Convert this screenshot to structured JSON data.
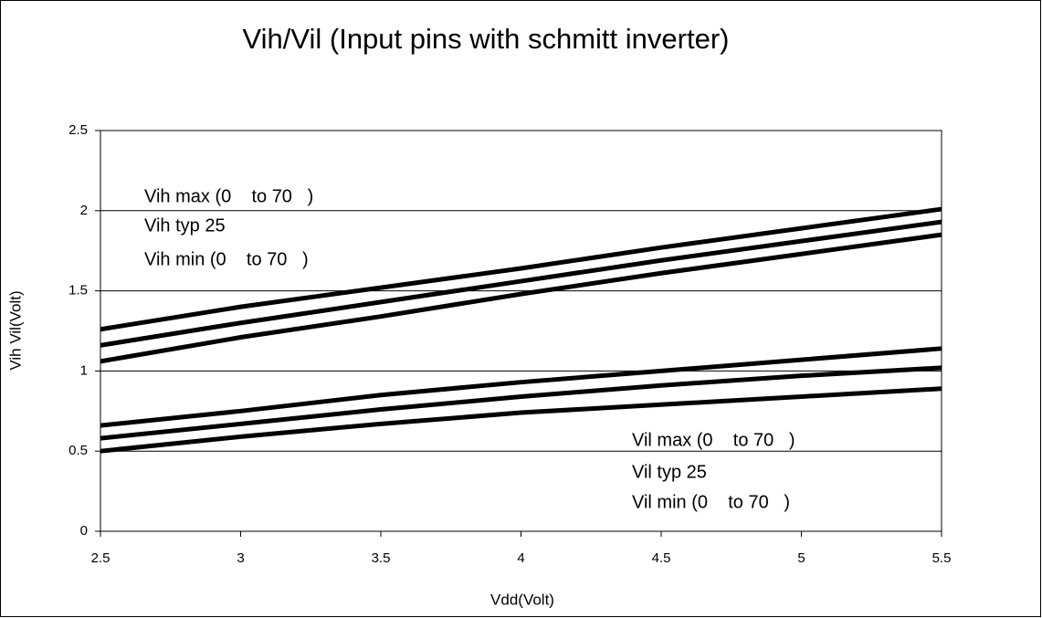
{
  "chart_data": {
    "type": "line",
    "title": "Vih/Vil (Input pins with schmitt inverter)",
    "x_label": "Vdd(Volt)",
    "y_label": "Vih Vil(Volt)",
    "x": [
      2.5,
      3,
      3.5,
      4,
      4.5,
      5,
      5.5
    ],
    "series": [
      {
        "name": "Vih max (0    to 70   )",
        "color": "#000000",
        "values": [
          1.26,
          1.4,
          1.52,
          1.64,
          1.77,
          1.89,
          2.01
        ]
      },
      {
        "name": "Vih typ 25",
        "color": "#000000",
        "values": [
          1.16,
          1.3,
          1.43,
          1.56,
          1.69,
          1.81,
          1.93
        ]
      },
      {
        "name": "Vih min (0    to 70   )",
        "color": "#000000",
        "values": [
          1.06,
          1.21,
          1.34,
          1.48,
          1.61,
          1.73,
          1.85
        ]
      },
      {
        "name": "Vil max (0    to 70   )",
        "color": "#000000",
        "values": [
          0.66,
          0.75,
          0.85,
          0.93,
          1.0,
          1.07,
          1.14
        ]
      },
      {
        "name": "Vil typ 25",
        "color": "#000000",
        "values": [
          0.58,
          0.67,
          0.76,
          0.84,
          0.91,
          0.97,
          1.02
        ]
      },
      {
        "name": "Vil min (0    to 70   )",
        "color": "#000000",
        "values": [
          0.5,
          0.59,
          0.67,
          0.74,
          0.79,
          0.84,
          0.89
        ]
      }
    ],
    "xlim": [
      2.5,
      5.5
    ],
    "xticks": [
      2.5,
      3,
      3.5,
      4,
      4.5,
      5,
      5.5
    ],
    "ylim": [
      0,
      2.5
    ],
    "yticks": [
      0,
      0.5,
      1,
      1.5,
      2,
      2.5
    ],
    "grid": true
  }
}
